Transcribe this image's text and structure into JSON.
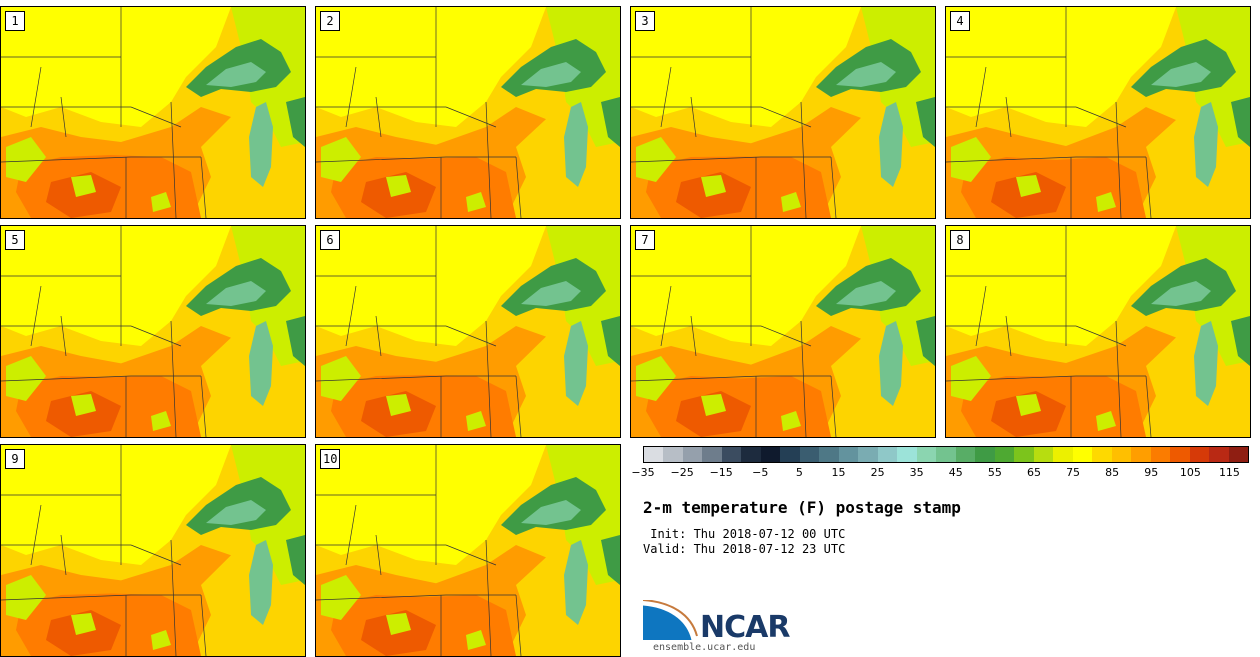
{
  "product": {
    "title": "2-m temperature (F) postage stamp",
    "init": " Init: Thu 2018-07-12 00 UTC",
    "valid": "Valid: Thu 2018-07-12 23 UTC"
  },
  "members": [
    "1",
    "2",
    "3",
    "4",
    "5",
    "6",
    "7",
    "8",
    "9",
    "10"
  ],
  "colorbar": {
    "ticks": [
      "−35",
      "−25",
      "−15",
      "−5",
      "5",
      "15",
      "25",
      "35",
      "45",
      "55",
      "65",
      "75",
      "85",
      "95",
      "105",
      "115"
    ],
    "tick_values": [
      -35,
      -25,
      -15,
      -5,
      5,
      15,
      25,
      35,
      45,
      55,
      65,
      75,
      85,
      95,
      105,
      115
    ],
    "range": [
      -35,
      120
    ],
    "step": 5,
    "colors": [
      "#dadde2",
      "#b7bec6",
      "#95a0ac",
      "#6e7d8c",
      "#3b4c60",
      "#1d2b3e",
      "#0f1a2d",
      "#243f55",
      "#3a5d70",
      "#4e7886",
      "#63939e",
      "#7aacb2",
      "#8fc8c8",
      "#9ce3d9",
      "#8bd5b0",
      "#73c38f",
      "#58ad66",
      "#3f9b45",
      "#4ea932",
      "#7cc41c",
      "#b7dd10",
      "#ecf000",
      "#ffff00",
      "#fed900",
      "#ffbf00",
      "#ff9e00",
      "#fb7c00",
      "#ee5a00",
      "#d63a08",
      "#b92914",
      "#8f1e12"
    ]
  },
  "branding": {
    "logo_text": "NCAR",
    "url": "ensemble.ucar.edu",
    "logo_colors": [
      "#0e76c0",
      "#ffffff",
      "#c67a3d"
    ]
  },
  "map_colors": {
    "base": "#fdd400",
    "warm": "#ff9c00",
    "hot": "#ff7c00",
    "hottest": "#ee5a00",
    "mild": "#ffff00",
    "cool": "#ccee00",
    "lake": "#3f9b45",
    "lake_light": "#73c38f",
    "border": "#333333"
  }
}
